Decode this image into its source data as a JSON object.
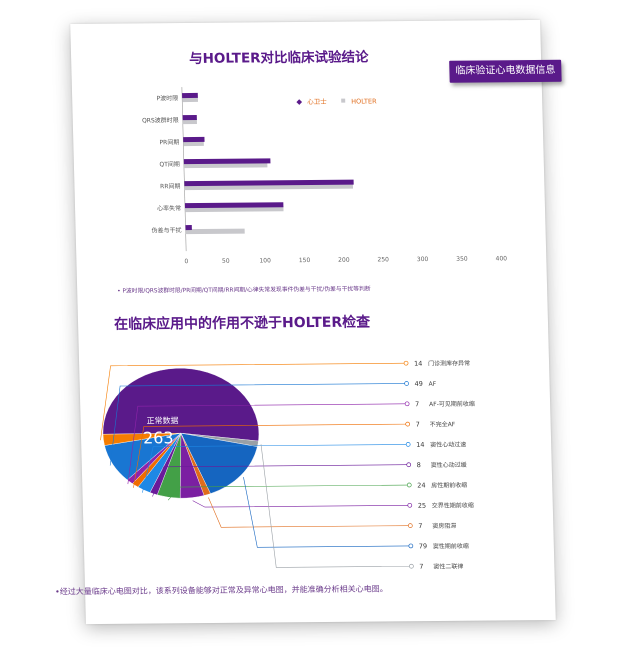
{
  "badge": "临床验证心电数据信息",
  "chart_data": [
    {
      "type": "bar",
      "title": "与HOLTER对比临床试验结论",
      "categories": [
        "P波时限",
        "QRS波群时限",
        "PR间期",
        "QT间期",
        "RR间期",
        "心率失常",
        "伪差与干扰"
      ],
      "series": [
        {
          "name": "心卫士",
          "values": [
            20,
            18,
            27,
            110,
            215,
            125,
            8
          ]
        },
        {
          "name": "HOLTER",
          "values": [
            20,
            18,
            26,
            106,
            214,
            125,
            75
          ]
        }
      ],
      "xlim": [
        0,
        400
      ],
      "xticks": [
        0,
        50,
        100,
        150,
        200,
        250,
        300,
        350,
        400
      ],
      "legend": "top-right",
      "note": "• P波时限/QRS波群时限/PR间期/QT间期/RR间期/心律失常发现事件伪差与干扰/伪差与干扰等判断"
    },
    {
      "type": "pie",
      "title": "在临床应用中的作用不逊于HOLTER检查",
      "center_label": "正常数据",
      "center_value": "263",
      "slices": [
        {
          "value": 263,
          "label": "正常数据",
          "color": "#5a1a8a"
        },
        {
          "value": 7,
          "label": "窦性二联律",
          "color": "#9aa0a6"
        },
        {
          "value": 79,
          "label": "窦性期前收缩",
          "color": "#1565c0"
        },
        {
          "value": 7,
          "label": "窦房阻滞",
          "color": "#e06c1c"
        },
        {
          "value": 25,
          "label": "交界性期前收缩",
          "color": "#7b1fa2"
        },
        {
          "value": 24,
          "label": "房性期前收缩",
          "color": "#43a047"
        },
        {
          "value": 8,
          "label": "窦性心动过缓",
          "color": "#6a1b9a"
        },
        {
          "value": 14,
          "label": "窦性心动过速",
          "color": "#1e88e5"
        },
        {
          "value": 7,
          "label": "不完全AF",
          "color": "#ef6c00"
        },
        {
          "value": 7,
          "label": "AF-可见期前收缩",
          "color": "#8e24aa"
        },
        {
          "value": 49,
          "label": "AF",
          "color": "#1976d2"
        },
        {
          "value": 14,
          "label": "门诊测库存异常",
          "color": "#f57c00"
        }
      ],
      "note": "•经过大量临床心电图对比，该系列设备能够对正常及异常心电图，并能准确分析相关心电图。"
    }
  ]
}
